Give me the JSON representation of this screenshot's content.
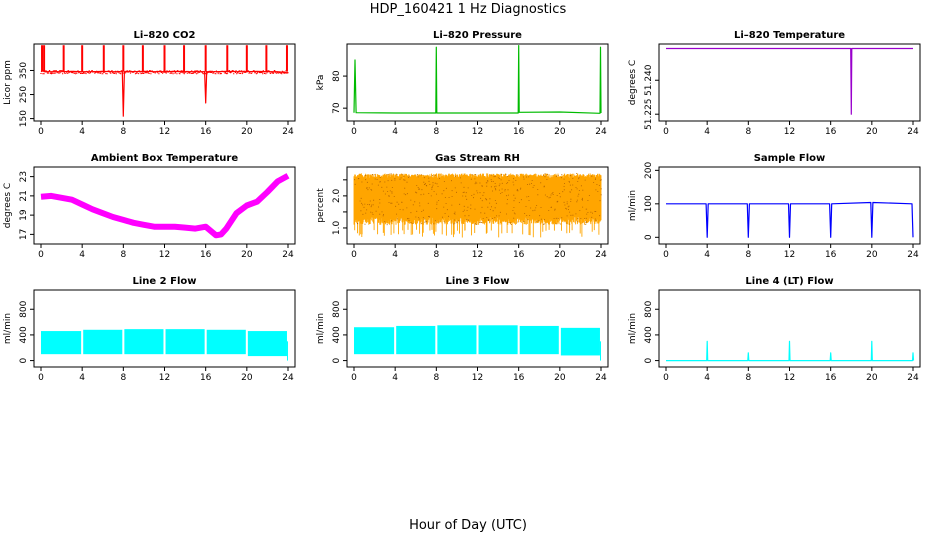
{
  "page": {
    "title": "HDP_160421  1 Hz Diagnostics",
    "xlabel": "Hour of Day (UTC)"
  },
  "chart_data": [
    {
      "title": "Li–820 CO2",
      "ylabel": "Licor ppm",
      "color": "#ff0000",
      "type": "line",
      "xlim": [
        0,
        24
      ],
      "xticks": [
        0,
        4,
        8,
        12,
        16,
        20,
        24
      ],
      "ylim": [
        140,
        460
      ],
      "yticks": [
        150,
        250,
        350
      ],
      "series": [
        {
          "x": [
            0,
            0.2,
            0.3,
            1,
            2,
            3,
            4,
            5,
            6,
            7,
            7.9,
            8,
            8.1,
            9,
            10,
            11,
            12,
            13,
            14,
            15,
            15.9,
            16,
            16.1,
            17,
            18,
            19,
            20,
            21,
            22,
            23,
            24
          ],
          "values": [
            345,
            350,
            345,
            345,
            345,
            346,
            345,
            345,
            346,
            345,
            345,
            160,
            345,
            345,
            346,
            345,
            345,
            346,
            345,
            345,
            345,
            215,
            345,
            345,
            346,
            345,
            345,
            346,
            345,
            345,
            340
          ]
        }
      ],
      "spikes": [
        0.1,
        0.3,
        2.2,
        4,
        6.1,
        8,
        9.9,
        12,
        13.9,
        16,
        18.1,
        20,
        21.9,
        23.9
      ]
    },
    {
      "title": "Li–820 Pressure",
      "ylabel": "kPa",
      "color": "#00bb00",
      "type": "line",
      "xlim": [
        0,
        24
      ],
      "xticks": [
        0,
        4,
        8,
        12,
        16,
        20,
        24
      ],
      "ylim": [
        66,
        90
      ],
      "yticks": [
        70,
        80
      ],
      "series": [
        {
          "x": [
            0,
            0.1,
            0.2,
            4,
            7.95,
            8,
            8.05,
            12,
            15.95,
            16,
            16.05,
            20,
            23.9,
            23.95,
            24
          ],
          "values": [
            68.6,
            85,
            68.6,
            68.5,
            68.5,
            89,
            68.5,
            68.5,
            68.5,
            89.5,
            68.7,
            68.8,
            68.4,
            89,
            68.5
          ]
        }
      ]
    },
    {
      "title": "Li–820 Temperature",
      "ylabel": "degrees C",
      "color": "#9900cc",
      "type": "line",
      "xlim": [
        0,
        24
      ],
      "xticks": [
        0,
        4,
        8,
        12,
        16,
        20,
        24
      ],
      "ylim": [
        51.222,
        51.256
      ],
      "yticks": [
        51.225,
        51.24
      ],
      "ytick_labels": [
        "51.225",
        "51.240"
      ],
      "series": [
        {
          "x": [
            0,
            17.95,
            18,
            18.05,
            24
          ],
          "values": [
            51.254,
            51.254,
            51.225,
            51.254,
            51.254
          ]
        }
      ]
    },
    {
      "title": "Ambient Box Temperature",
      "ylabel": "degrees C",
      "color": "#ff00ff",
      "type": "line",
      "xlim": [
        0,
        24
      ],
      "xticks": [
        0,
        4,
        8,
        12,
        16,
        20,
        24
      ],
      "ylim": [
        16,
        24
      ],
      "yticks": [
        17,
        19,
        21,
        23
      ],
      "series": [
        {
          "x": [
            0,
            1,
            2,
            3,
            4,
            5,
            6,
            7,
            8,
            9,
            10,
            11,
            12,
            13,
            14,
            15,
            16,
            17,
            17.5,
            18,
            19,
            20,
            21,
            22,
            23,
            24
          ],
          "values": [
            20.9,
            21.0,
            20.8,
            20.6,
            20.1,
            19.6,
            19.2,
            18.8,
            18.5,
            18.2,
            18.0,
            17.8,
            17.8,
            17.8,
            17.7,
            17.6,
            17.8,
            16.9,
            17.0,
            17.6,
            19.2,
            20.0,
            20.4,
            21.4,
            22.5,
            23.1
          ]
        }
      ]
    },
    {
      "title": "Gas Stream RH",
      "ylabel": "percent",
      "color": "#ffa500",
      "type": "line",
      "xlim": [
        0,
        24
      ],
      "xticks": [
        0,
        4,
        8,
        12,
        16,
        20,
        24
      ],
      "ylim": [
        0.5,
        2.9
      ],
      "yticks": [
        1.0,
        1.5,
        2.0,
        2.5
      ],
      "ytick_labels": [
        "1.0",
        "",
        "2.0",
        ""
      ],
      "band": {
        "low": 1.1,
        "high": 2.7
      }
    },
    {
      "title": "Sample Flow",
      "ylabel": "ml/min",
      "color": "#0000ff",
      "type": "line",
      "xlim": [
        0,
        24
      ],
      "xticks": [
        0,
        4,
        8,
        12,
        16,
        20,
        24
      ],
      "ylim": [
        -20,
        210
      ],
      "yticks": [
        0,
        100,
        200
      ],
      "series": [
        {
          "x": [
            0,
            3.9,
            4,
            4.1,
            7.9,
            8,
            8.1,
            11.9,
            12,
            12.1,
            15.9,
            16,
            16.1,
            19.9,
            20,
            20.1,
            23.9,
            24
          ],
          "values": [
            100,
            100,
            0,
            100,
            100,
            0,
            100,
            100,
            0,
            100,
            100,
            0,
            100,
            104,
            0,
            104,
            100,
            0
          ]
        }
      ]
    },
    {
      "title": "Line 2 Flow",
      "ylabel": "ml/min",
      "color": "#00ffff",
      "type": "line",
      "xlim": [
        0,
        24
      ],
      "xticks": [
        0,
        4,
        8,
        12,
        16,
        20,
        24
      ],
      "ylim": [
        -100,
        1100
      ],
      "yticks": [
        0,
        400,
        800
      ],
      "band_segments": [
        {
          "x0": 0,
          "x1": 3.9,
          "low": 100,
          "high": 460
        },
        {
          "x0": 4.1,
          "x1": 7.9,
          "low": 100,
          "high": 480
        },
        {
          "x0": 8.1,
          "x1": 11.9,
          "low": 100,
          "high": 490
        },
        {
          "x0": 12.1,
          "x1": 15.9,
          "low": 100,
          "high": 490
        },
        {
          "x0": 16.1,
          "x1": 19.9,
          "low": 100,
          "high": 480
        },
        {
          "x0": 20.1,
          "x1": 23.9,
          "low": 70,
          "high": 460
        }
      ]
    },
    {
      "title": "Line 3 Flow",
      "ylabel": "ml/min",
      "color": "#00ffff",
      "type": "line",
      "xlim": [
        0,
        24
      ],
      "xticks": [
        0,
        4,
        8,
        12,
        16,
        20,
        24
      ],
      "ylim": [
        -100,
        1100
      ],
      "yticks": [
        0,
        400,
        800
      ],
      "band_segments": [
        {
          "x0": 0,
          "x1": 3.9,
          "low": 100,
          "high": 520
        },
        {
          "x0": 4.1,
          "x1": 7.9,
          "low": 100,
          "high": 540
        },
        {
          "x0": 8.1,
          "x1": 11.9,
          "low": 100,
          "high": 550
        },
        {
          "x0": 12.1,
          "x1": 15.9,
          "low": 100,
          "high": 550
        },
        {
          "x0": 16.1,
          "x1": 19.9,
          "low": 100,
          "high": 540
        },
        {
          "x0": 20.1,
          "x1": 23.9,
          "low": 80,
          "high": 510
        }
      ]
    },
    {
      "title": "Line 4 (LT) Flow",
      "ylabel": "ml/min",
      "color": "#00ffff",
      "type": "line",
      "xlim": [
        0,
        24
      ],
      "xticks": [
        0,
        4,
        8,
        12,
        16,
        20,
        24
      ],
      "ylim": [
        -100,
        1100
      ],
      "yticks": [
        0,
        400,
        800
      ],
      "series": [
        {
          "x": [
            0,
            3.95,
            4,
            4.05,
            7.95,
            8,
            8.05,
            11.95,
            12,
            12.05,
            15.95,
            16,
            16.05,
            19.95,
            20,
            20.05,
            23.95,
            24,
            24.05
          ],
          "values": [
            0,
            0,
            300,
            0,
            0,
            120,
            0,
            0,
            300,
            0,
            0,
            120,
            0,
            0,
            300,
            0,
            0,
            120,
            0
          ]
        }
      ]
    }
  ]
}
